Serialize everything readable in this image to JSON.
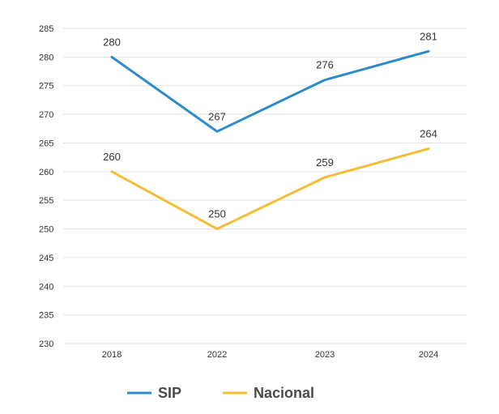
{
  "chart_data": {
    "type": "line",
    "categories": [
      "2018",
      "2022",
      "2023",
      "2024"
    ],
    "series": [
      {
        "name": "SIP",
        "values": [
          280,
          267,
          276,
          281
        ],
        "color": "#2e8bc9"
      },
      {
        "name": "Nacional",
        "values": [
          260,
          250,
          259,
          264
        ],
        "color": "#f3be35"
      }
    ],
    "ylim": [
      230,
      285
    ],
    "yticks": [
      230,
      235,
      240,
      245,
      250,
      255,
      260,
      265,
      270,
      275,
      280,
      285
    ],
    "grid": true,
    "legend_position": "bottom"
  }
}
